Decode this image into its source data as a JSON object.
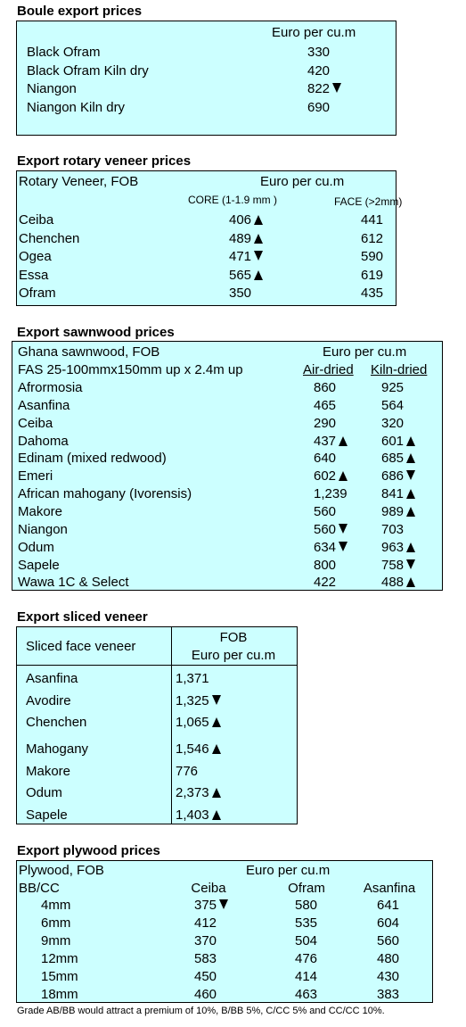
{
  "boule": {
    "title": "Boule export prices",
    "unit": "Euro per cu.m",
    "rows": [
      {
        "name": "Black Ofram",
        "value": "330",
        "trend": ""
      },
      {
        "name": "Black Ofram  Kiln dry",
        "value": "420",
        "trend": ""
      },
      {
        "name": "Niangon",
        "value": "822",
        "trend": "down"
      },
      {
        "name": "Niangon Kiln dry",
        "value": "690",
        "trend": ""
      }
    ]
  },
  "rotary": {
    "title": "Export rotary veneer prices",
    "label": "Rotary Veneer,  FOB",
    "unit": "Euro  per cu.m",
    "col1": "CORE (1-1.9 mm )",
    "col2": "FACE (>2mm)",
    "rows": [
      {
        "name": "Ceiba",
        "core": "406",
        "core_trend": "up",
        "face": "441"
      },
      {
        "name": "Chenchen",
        "core": "489",
        "core_trend": "up",
        "face": "612"
      },
      {
        "name": "Ogea",
        "core": "471",
        "core_trend": "down",
        "face": "590"
      },
      {
        "name": "Essa",
        "core": "565",
        "core_trend": "up",
        "face": "619"
      },
      {
        "name": "Ofram",
        "core": "350",
        "core_trend": "",
        "face": "435"
      }
    ]
  },
  "sawn": {
    "title": "Export sawnwood prices",
    "label": "Ghana sawnwood, FOB",
    "unit": "Euro per cu.m",
    "spec": "FAS 25-100mmx150mm up x 2.4m up",
    "col1": "Air-dried",
    "col2": "Kiln-dried",
    "rows": [
      {
        "name": "Afrormosia",
        "air": "860",
        "air_trend": "",
        "kiln": "925",
        "kiln_trend": ""
      },
      {
        "name": "Asanfina",
        "air": "465",
        "air_trend": "",
        "kiln": "564",
        "kiln_trend": ""
      },
      {
        "name": "Ceiba",
        "air": "290",
        "air_trend": "",
        "kiln": "320",
        "kiln_trend": ""
      },
      {
        "name": "Dahoma",
        "air": "437",
        "air_trend": "up",
        "kiln": "601",
        "kiln_trend": "up"
      },
      {
        "name": "Edinam (mixed redwood)",
        "air": "640",
        "air_trend": "",
        "kiln": "685",
        "kiln_trend": "up"
      },
      {
        "name": "Emeri",
        "air": "602",
        "air_trend": "up",
        "kiln": "686",
        "kiln_trend": "down"
      },
      {
        "name": "African mahogany (Ivorensis)",
        "air": "1,239",
        "air_trend": "",
        "kiln": "841",
        "kiln_trend": "up"
      },
      {
        "name": "Makore",
        "air": "560",
        "air_trend": "",
        "kiln": "989",
        "kiln_trend": "up"
      },
      {
        "name": "Niangon",
        "air": "560",
        "air_trend": "down",
        "kiln": "703",
        "kiln_trend": ""
      },
      {
        "name": "Odum",
        "air": "634",
        "air_trend": "down",
        "kiln": "963",
        "kiln_trend": "up"
      },
      {
        "name": "Sapele",
        "air": "800",
        "air_trend": "",
        "kiln": "758",
        "kiln_trend": "down"
      },
      {
        "name": "Wawa 1C & Select",
        "air": "422",
        "air_trend": "",
        "kiln": "488",
        "kiln_trend": "up"
      }
    ]
  },
  "sliced": {
    "title": "Export sliced veneer",
    "label": "Sliced face veneer",
    "unit_line1": "FOB",
    "unit_line2": "Euro per cu.m",
    "rows": [
      {
        "name": "Asanfina",
        "value": "1,371",
        "trend": ""
      },
      {
        "name": "Avodire",
        "value": "1,325",
        "trend": "down"
      },
      {
        "name": "Chenchen",
        "value": "1,065",
        "trend": "up"
      },
      {
        "name": "Mahogany",
        "value": "1,546",
        "trend": "up"
      },
      {
        "name": "Makore",
        "value": "776",
        "trend": ""
      },
      {
        "name": "Odum",
        "value": "2,373",
        "trend": "up"
      },
      {
        "name": "Sapele",
        "value": "1,403",
        "trend": "up"
      }
    ]
  },
  "plywood": {
    "title": "Export plywood prices",
    "label": "Plywood, FOB",
    "unit": "Euro per cu.m",
    "grade": "BB/CC",
    "col1": "Ceiba",
    "col2": "Ofram",
    "col3": "Asanfina",
    "rows": [
      {
        "name": "4mm",
        "ceiba": "375",
        "ceiba_trend": "down",
        "ofram": "580",
        "asanfina": "641"
      },
      {
        "name": "6mm",
        "ceiba": "412",
        "ceiba_trend": "",
        "ofram": "535",
        "asanfina": "604"
      },
      {
        "name": "9mm",
        "ceiba": "370",
        "ceiba_trend": "",
        "ofram": "504",
        "asanfina": "560"
      },
      {
        "name": "12mm",
        "ceiba": "583",
        "ceiba_trend": "",
        "ofram": "476",
        "asanfina": "480"
      },
      {
        "name": "15mm",
        "ceiba": "450",
        "ceiba_trend": "",
        "ofram": "414",
        "asanfina": "430"
      },
      {
        "name": "18mm",
        "ceiba": "460",
        "ceiba_trend": "",
        "ofram": "463",
        "asanfina": "383"
      }
    ],
    "note": "Grade AB/BB would attract a premium of 10%, B/BB 5%, C/CC 5% and CC/CC 10%."
  }
}
